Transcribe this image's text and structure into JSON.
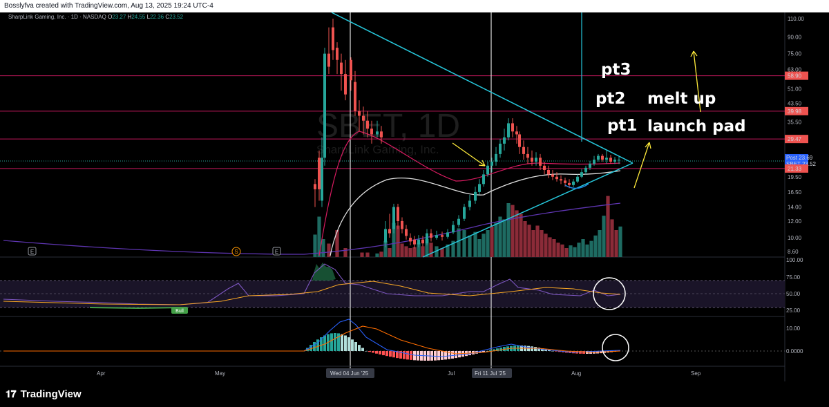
{
  "header": {
    "text": "Bosslyfva created with TradingView.com, Aug 13, 2025 19:24 UTC-4"
  },
  "symbol": {
    "name": "SharpLink Gaming, Inc. · 1D · NASDAQ",
    "ohlc": [
      {
        "k": "O",
        "v": "23.27"
      },
      {
        "k": "H",
        "v": "24.55"
      },
      {
        "k": "L",
        "v": "22.36"
      },
      {
        "k": "C",
        "v": "23.52"
      }
    ]
  },
  "watermark": {
    "ticker": "SBET, 1D",
    "company": "SharpLink Gaming, Inc."
  },
  "footer": {
    "brand": "TradingView"
  },
  "colors": {
    "up": "#26a69a",
    "down": "#ef5350",
    "level": "#c2185b",
    "trend": "#26c6da",
    "yellow_arrow": "#ffeb3b"
  },
  "chart_data": {
    "type": "candlestick",
    "price_axis": {
      "scale": "log",
      "ticks": [
        "110.00",
        "90.00",
        "75.00",
        "63.00",
        "51.00",
        "43.50",
        "35.50",
        "29.50",
        "23.50",
        "19.50",
        "16.50",
        "14.00",
        "12.00",
        "10.00",
        "8.60"
      ]
    },
    "price_labels": [
      {
        "label": "58.90",
        "value": 58.9,
        "kind": "level"
      },
      {
        "label": "39.98",
        "value": 39.98,
        "kind": "level"
      },
      {
        "label": "29.47",
        "value": 29.47,
        "kind": "level"
      },
      {
        "label": "Post 23.69",
        "value": 23.69,
        "kind": "post"
      },
      {
        "label": "SBET 23.52",
        "value": 23.52,
        "kind": "last"
      },
      {
        "label": "21.33",
        "value": 21.33,
        "kind": "level"
      }
    ],
    "x_axis": {
      "ticks": [
        "Apr",
        "May",
        "Jul",
        "Aug",
        "Sep"
      ],
      "highlighted": [
        "Wed 04 Jun '25",
        "Fri 11 Jul '25"
      ]
    },
    "annotations": [
      "pt3",
      "pt2",
      "melt up",
      "pt1",
      "launch pad"
    ],
    "event_markers": [
      "E",
      "S",
      "E"
    ],
    "rsi": {
      "ticks": [
        "100.00",
        "75.00",
        "50.00",
        "25.00"
      ],
      "label": "Bull"
    },
    "macd": {
      "ticks": [
        "10.00",
        "0.0000"
      ]
    }
  }
}
